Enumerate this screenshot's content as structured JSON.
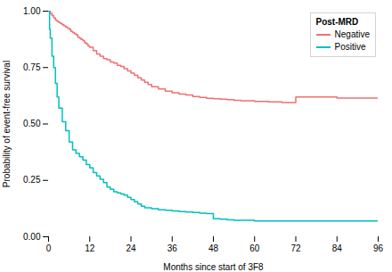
{
  "chart_data": {
    "type": "step",
    "xlabel": "Months since start of 3F8",
    "ylabel": "Probability of event-free survival",
    "xlim": [
      0,
      96
    ],
    "ylim": [
      0,
      1.0
    ],
    "xticks": [
      0,
      12,
      24,
      36,
      48,
      60,
      72,
      84,
      96
    ],
    "yticks": [
      {
        "value": 0,
        "label": "0.00"
      },
      {
        "value": 0.25,
        "label": "0.25"
      },
      {
        "value": 0.5,
        "label": "0.50"
      },
      {
        "value": 0.75,
        "label": "0.75"
      },
      {
        "value": 1.0,
        "label": "1.00"
      }
    ],
    "legend": "upper right",
    "legend_title": "Post-MRD",
    "series": [
      {
        "name": "Negative",
        "color": "#F07070",
        "x": [
          0,
          0.5,
          1,
          1.5,
          2,
          2.5,
          3,
          3.5,
          4,
          4.5,
          5,
          5.5,
          6,
          6.5,
          7,
          7.5,
          8,
          8.5,
          9,
          9.5,
          10,
          10.5,
          11,
          11.5,
          12,
          13,
          14,
          15,
          16,
          17,
          18,
          19,
          20,
          21,
          22,
          23,
          24,
          25,
          26,
          27,
          28,
          29,
          30,
          32,
          34,
          36,
          38,
          40,
          42,
          44,
          46,
          48,
          50,
          52,
          54,
          56,
          60,
          64,
          68,
          72,
          76,
          80,
          84,
          88,
          92,
          96
        ],
        "values": [
          1.0,
          0.99,
          0.98,
          0.97,
          0.96,
          0.955,
          0.95,
          0.945,
          0.94,
          0.935,
          0.93,
          0.925,
          0.92,
          0.91,
          0.905,
          0.9,
          0.895,
          0.885,
          0.88,
          0.875,
          0.87,
          0.86,
          0.855,
          0.845,
          0.84,
          0.825,
          0.81,
          0.8,
          0.79,
          0.785,
          0.775,
          0.77,
          0.76,
          0.755,
          0.745,
          0.735,
          0.725,
          0.715,
          0.705,
          0.695,
          0.685,
          0.675,
          0.665,
          0.655,
          0.645,
          0.638,
          0.632,
          0.628,
          0.622,
          0.618,
          0.614,
          0.612,
          0.61,
          0.608,
          0.605,
          0.603,
          0.6,
          0.598,
          0.595,
          0.62,
          0.62,
          0.62,
          0.615,
          0.615,
          0.615,
          0.615
        ]
      },
      {
        "name": "Positive",
        "color": "#00BFBF",
        "x": [
          0,
          0.3,
          0.5,
          1,
          1.5,
          2,
          2.5,
          3,
          4,
          5,
          6,
          7,
          8,
          9,
          10,
          11,
          12,
          13,
          14,
          15,
          16,
          17,
          18,
          19,
          20,
          21,
          22,
          23,
          24,
          25,
          26,
          27,
          28,
          30,
          32,
          34,
          36,
          38,
          40,
          42,
          44,
          46,
          48,
          50,
          52,
          54,
          60,
          72,
          84,
          96
        ],
        "values": [
          1.0,
          0.92,
          0.88,
          0.8,
          0.75,
          0.68,
          0.62,
          0.57,
          0.51,
          0.47,
          0.42,
          0.385,
          0.37,
          0.355,
          0.34,
          0.32,
          0.305,
          0.285,
          0.27,
          0.255,
          0.24,
          0.22,
          0.21,
          0.2,
          0.195,
          0.19,
          0.185,
          0.175,
          0.165,
          0.155,
          0.145,
          0.135,
          0.128,
          0.125,
          0.12,
          0.118,
          0.115,
          0.112,
          0.11,
          0.108,
          0.105,
          0.103,
          0.08,
          0.078,
          0.075,
          0.073,
          0.07,
          0.07,
          0.07,
          0.07
        ]
      }
    ]
  }
}
